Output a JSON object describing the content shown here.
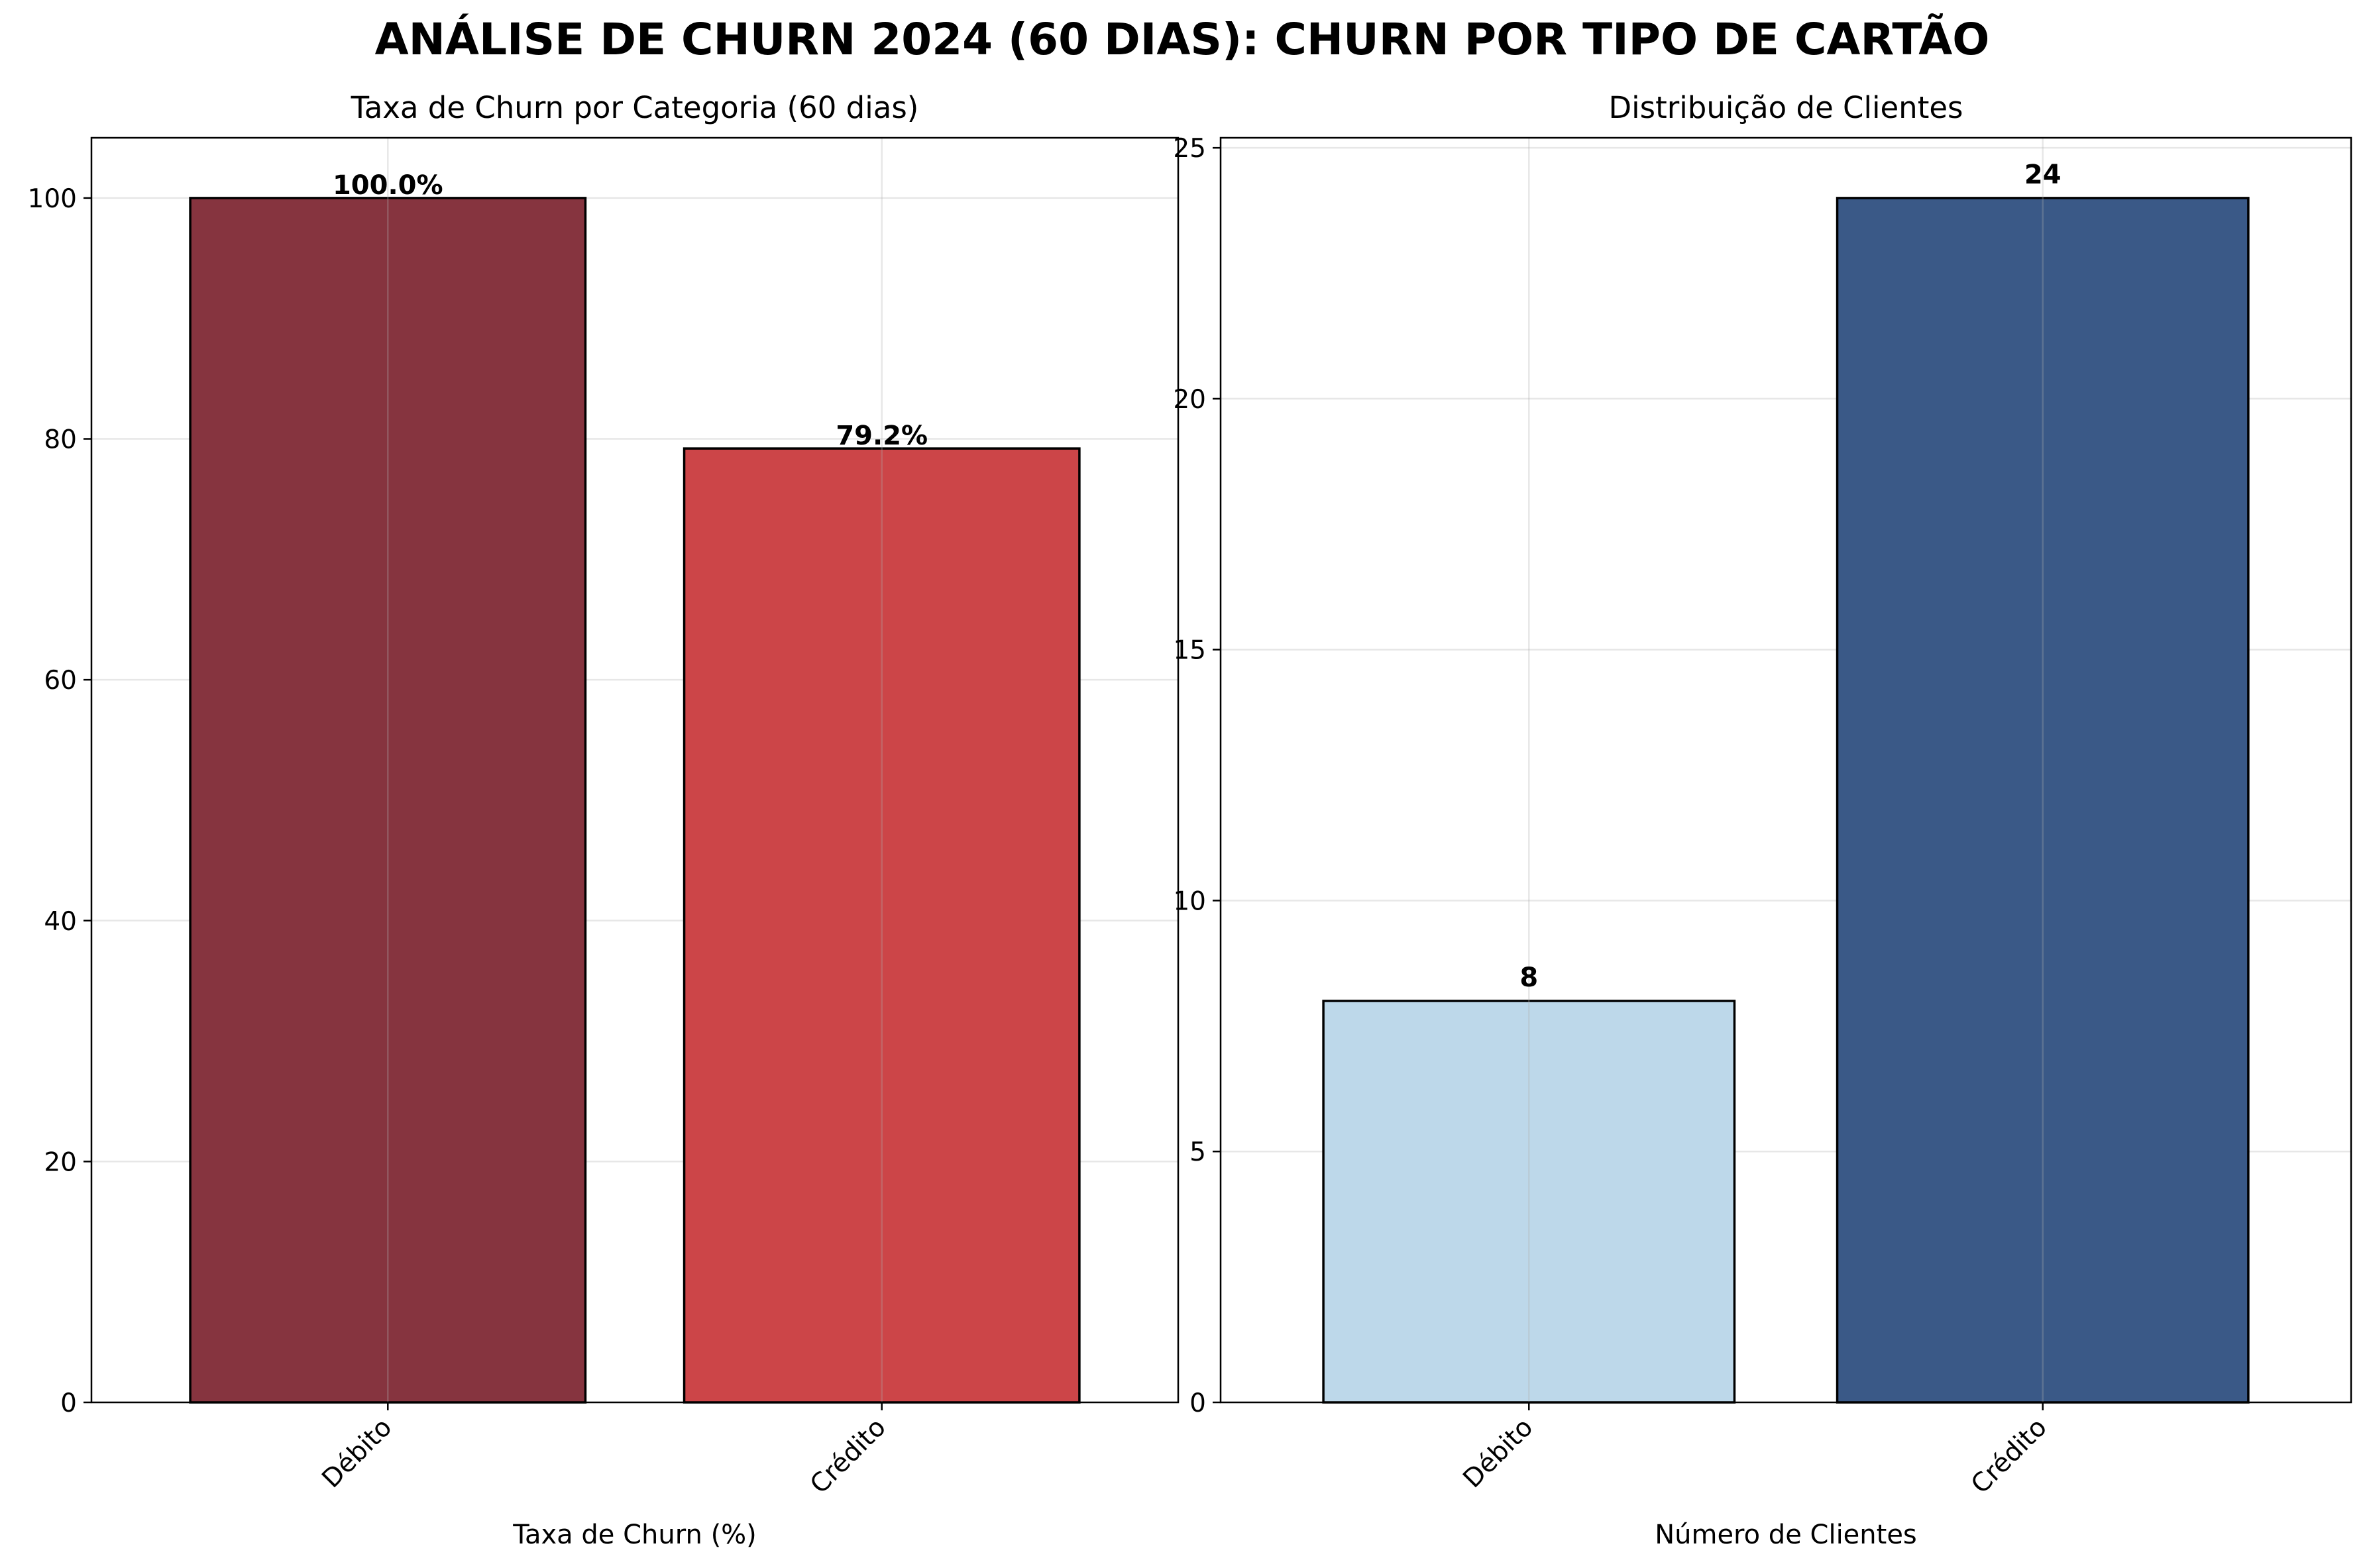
{
  "figure": {
    "title": "ANÁLISE DE CHURN 2024 (60 DIAS): CHURN POR TIPO DE CARTÃO"
  },
  "chart_data": [
    {
      "type": "bar",
      "title": "Taxa de Churn por Categoria (60 dias)",
      "xlabel": "Taxa de Churn (%)",
      "ylabel": "",
      "categories": [
        "Débito",
        "Crédito"
      ],
      "values": [
        100.0,
        79.2
      ],
      "bar_labels": [
        "100.0%",
        "79.2%"
      ],
      "bar_colors": [
        "#86343f",
        "#cc4548"
      ],
      "ylim": [
        0,
        105
      ],
      "yticks": [
        0,
        20,
        40,
        60,
        80,
        100
      ],
      "grid": true,
      "legend": "none"
    },
    {
      "type": "bar",
      "title": "Distribuição de Clientes",
      "xlabel": "Número de Clientes",
      "ylabel": "",
      "categories": [
        "Débito",
        "Crédito"
      ],
      "values": [
        8,
        24
      ],
      "bar_labels": [
        "8",
        "24"
      ],
      "bar_colors": [
        "#bdd8ea",
        "#3a5987"
      ],
      "ylim": [
        0,
        25.2
      ],
      "yticks": [
        0,
        5,
        10,
        15,
        20,
        25
      ],
      "grid": true,
      "legend": "none"
    }
  ]
}
